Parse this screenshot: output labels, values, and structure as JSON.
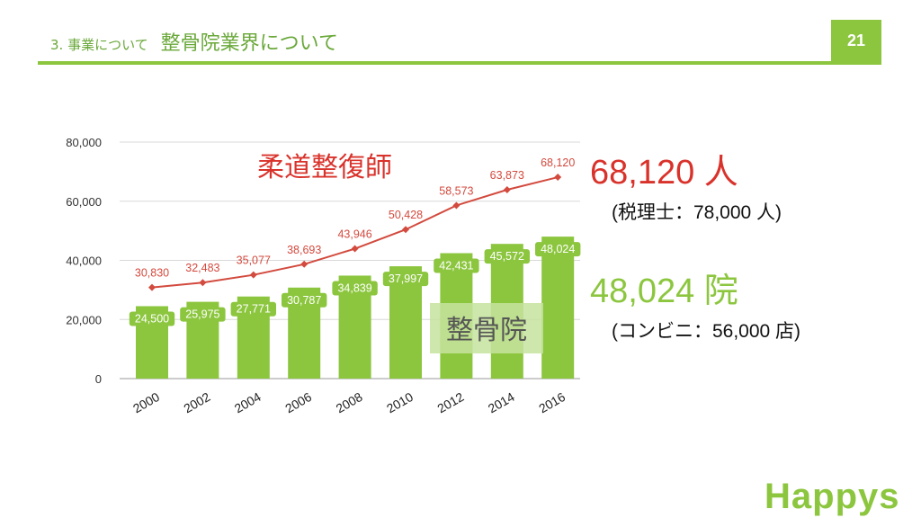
{
  "header": {
    "section": "3. 事業について",
    "title": "整骨院業界について",
    "page_number": "21"
  },
  "colors": {
    "accent_green": "#8cc63f",
    "red": "#d9322b",
    "line_red": "#d34a3e"
  },
  "stats": {
    "judo": {
      "value": "68,120 人",
      "compare": "(税理士：78,000 人)"
    },
    "clinic": {
      "value": "48,024 院",
      "compare": "(コンビニ：56,000 店)"
    }
  },
  "logo": "Happys",
  "chart_data": {
    "type": "bar+line",
    "categories": [
      "2000",
      "2002",
      "2004",
      "2006",
      "2008",
      "2010",
      "2012",
      "2014",
      "2016"
    ],
    "ylim": [
      0,
      80000
    ],
    "yticks": [
      "0",
      "20,000",
      "40,000",
      "60,000",
      "80,000"
    ],
    "series": [
      {
        "name": "整骨院",
        "type": "bar",
        "values": [
          24500,
          25975,
          27771,
          30787,
          34839,
          37997,
          42431,
          45572,
          48024
        ],
        "labels": [
          "24,500",
          "25,975",
          "27,771",
          "30,787",
          "34,839",
          "37,997",
          "42,431",
          "45,572",
          "48,024"
        ]
      },
      {
        "name": "柔道整復師",
        "type": "line",
        "values": [
          30830,
          32483,
          35077,
          38693,
          43946,
          50428,
          58573,
          63873,
          68120
        ],
        "labels": [
          "30,830",
          "32,483",
          "35,077",
          "38,693",
          "43,946",
          "50,428",
          "58,573",
          "63,873",
          "68,120"
        ]
      }
    ],
    "grid": true
  }
}
